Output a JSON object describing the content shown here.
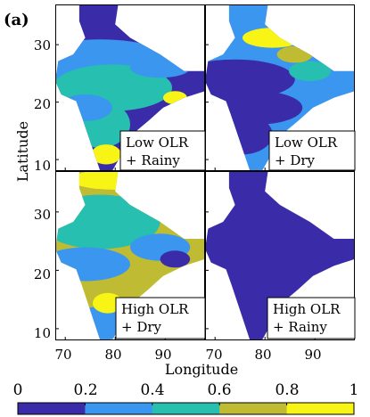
{
  "chart_data": {
    "type": "heatmap",
    "figure_label": "(a)",
    "xlabel": "Longitude",
    "ylabel": "Latitude",
    "xlim": [
      68,
      98
    ],
    "ylim": [
      8,
      37
    ],
    "x_ticks": [
      70,
      80,
      90
    ],
    "y_ticks": [
      10,
      20,
      30
    ],
    "colorbar": {
      "range": [
        0,
        1
      ],
      "ticks": [
        "0",
        "0.2",
        "0.4",
        "0.6",
        "0.8",
        "1"
      ],
      "colors": [
        "#3a2ca8",
        "#3b96ef",
        "#26bfb0",
        "#bfbb33",
        "#f7f416"
      ]
    },
    "panels": [
      {
        "label_lines": [
          "Low OLR",
          "+ Rainy"
        ],
        "dominant_value": 0.1
      },
      {
        "label_lines": [
          "Low OLR",
          "+ Dry"
        ],
        "dominant_value": 0.3
      },
      {
        "label_lines": [
          "High OLR",
          "+ Dry"
        ],
        "dominant_value": 0.7
      },
      {
        "label_lines": [
          "High OLR",
          "+ Rainy"
        ],
        "dominant_value": 0.05
      }
    ]
  }
}
